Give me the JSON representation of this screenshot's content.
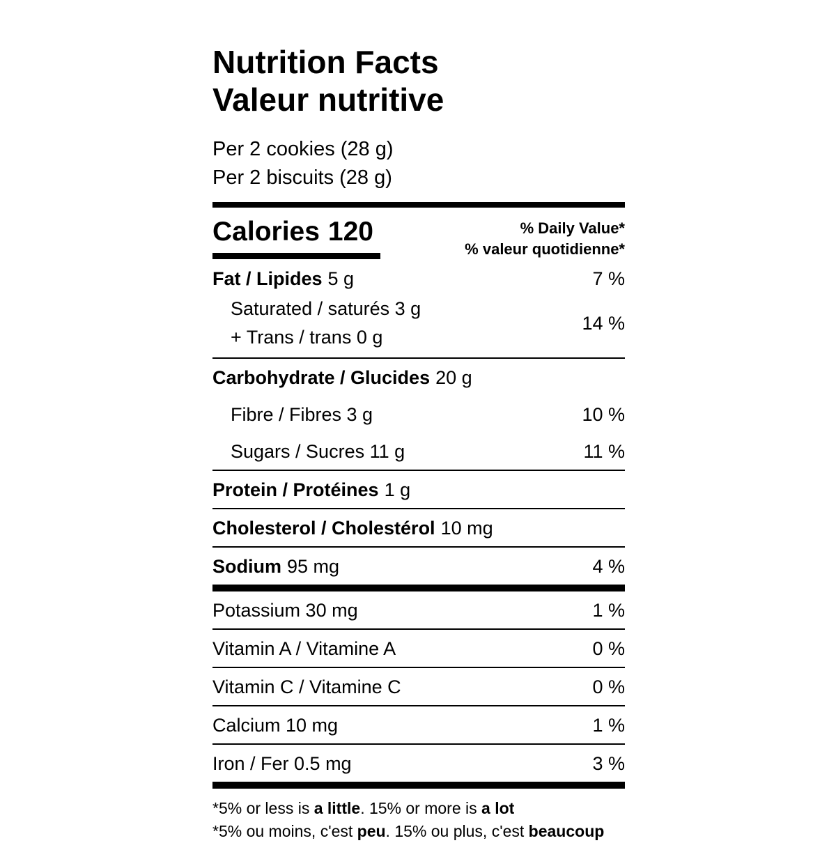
{
  "header": {
    "title_en": "Nutrition Facts",
    "title_fr": "Valeur nutritive",
    "serving_en": "Per 2 cookies (28 g)",
    "serving_fr": "Per 2 biscuits (28 g)"
  },
  "calories": {
    "label": "Calories",
    "value": "120",
    "daily_value_en": "% Daily Value*",
    "daily_value_fr": "% valeur quotidienne*"
  },
  "nutrients": {
    "fat": {
      "name": "Fat / Lipides",
      "amount": "5 g",
      "percent": "7 %"
    },
    "saturated_trans": {
      "line1": "Saturated / saturés 3 g",
      "line2": "+ Trans / trans 0 g",
      "percent": "14 %"
    },
    "carbohydrate": {
      "name": "Carbohydrate / Glucides",
      "amount": "20 g"
    },
    "fibre": {
      "text": "Fibre / Fibres 3 g",
      "percent": "10 %"
    },
    "sugars": {
      "text": "Sugars / Sucres 11 g",
      "percent": "11 %"
    },
    "protein": {
      "name": "Protein / Protéines",
      "amount": "1 g"
    },
    "cholesterol": {
      "name": "Cholesterol / Cholestérol",
      "amount": "10 mg"
    },
    "sodium": {
      "name": "Sodium",
      "amount": "95 mg",
      "percent": "4 %"
    },
    "potassium": {
      "text": "Potassium 30 mg",
      "percent": "1 %"
    },
    "vitamin_a": {
      "text": "Vitamin A / Vitamine A",
      "percent": "0 %"
    },
    "vitamin_c": {
      "text": "Vitamin C / Vitamine C",
      "percent": "0 %"
    },
    "calcium": {
      "text": "Calcium 10 mg",
      "percent": "1 %"
    },
    "iron": {
      "text": "Iron / Fer 0.5 mg",
      "percent": "3 %"
    }
  },
  "footnotes": {
    "en": {
      "pre": "*5% or less is ",
      "bold1": "a little",
      "mid": ". 15% or more is ",
      "bold2": "a lot"
    },
    "fr": {
      "pre": "*5% ou moins, c'est ",
      "bold1": "peu",
      "mid": ". 15% ou plus, c'est ",
      "bold2": "beaucoup"
    }
  },
  "colors": {
    "text": "#000000",
    "background": "#ffffff"
  }
}
